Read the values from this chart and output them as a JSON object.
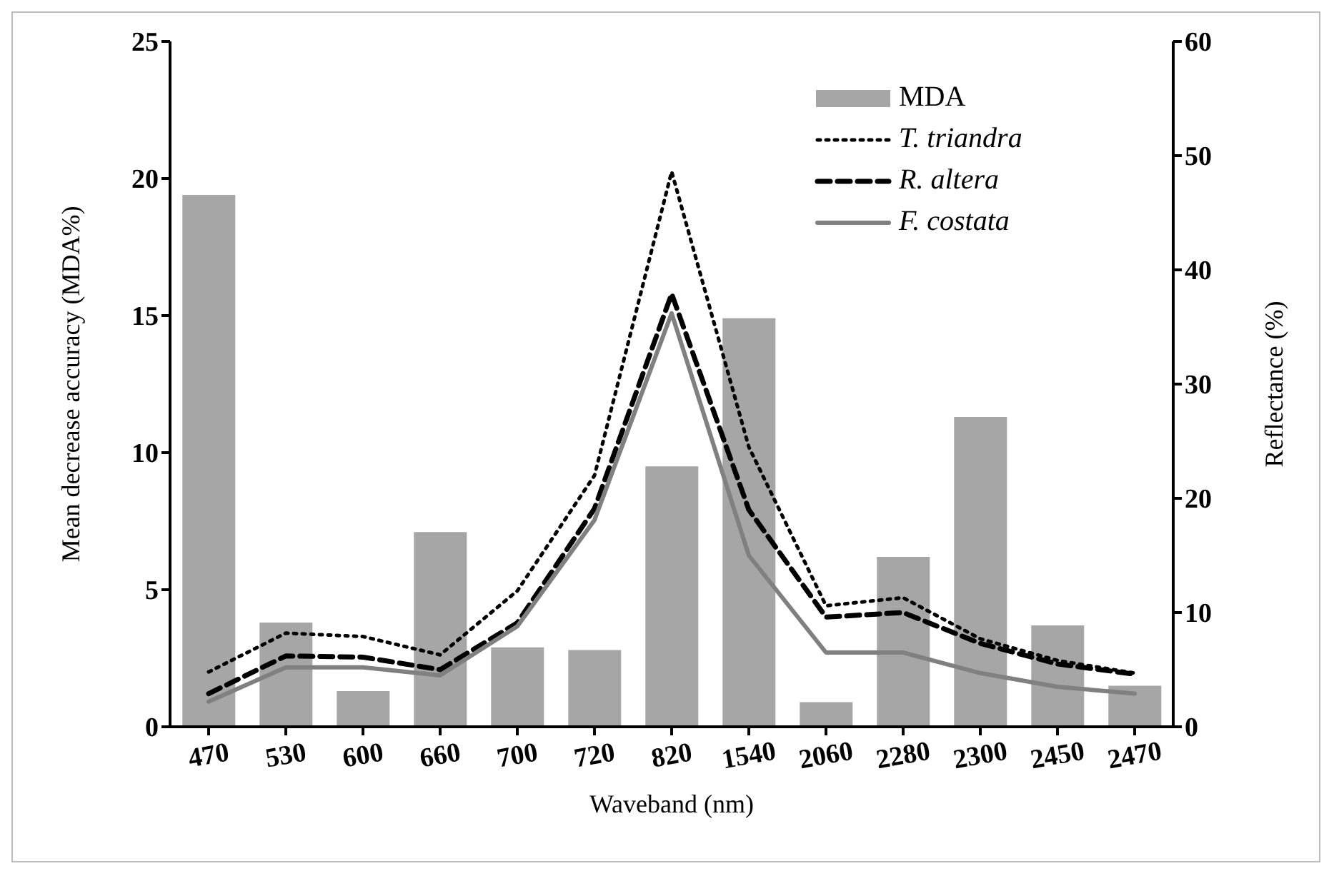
{
  "chart_data": {
    "type": "bar",
    "xlabel": "Waveband (nm)",
    "ylabel": "Mean decrease accuracy (MDA%)",
    "y2label": "Reflectance (%)",
    "categories": [
      "470",
      "530",
      "600",
      "660",
      "700",
      "720",
      "820",
      "1540",
      "2060",
      "2280",
      "2300",
      "2450",
      "2470"
    ],
    "ylim": [
      0,
      25
    ],
    "yticks": [
      0,
      5,
      10,
      15,
      20,
      25
    ],
    "y2lim": [
      0,
      60
    ],
    "y2ticks": [
      0,
      10,
      20,
      30,
      40,
      50,
      60
    ],
    "legend": "top right",
    "grid": false,
    "series": [
      {
        "name": "MDA",
        "color": "#a6a6a6",
        "values": [
          19.4,
          3.8,
          1.3,
          7.1,
          2.9,
          2.8,
          9.5,
          14.9,
          0.9,
          6.2,
          11.3,
          3.7,
          1.5
        ]
      },
      {
        "name": "T. triandra",
        "type": "line",
        "axis": "y2",
        "color": "#000000",
        "line_style": "dotted",
        "values": [
          4.8,
          8.2,
          7.9,
          6.3,
          11.9,
          22,
          48.6,
          24.5,
          10.6,
          11.3,
          7.7,
          5.8,
          4.7
        ]
      },
      {
        "name": "R. altera",
        "type": "line",
        "axis": "y2",
        "color": "#000000",
        "line_style": "dashed",
        "values": [
          2.9,
          6.2,
          6.1,
          5.0,
          9.1,
          19.1,
          37.9,
          19.0,
          9.6,
          10.0,
          7.3,
          5.5,
          4.6
        ]
      },
      {
        "name": "F. costata",
        "type": "line",
        "axis": "y2",
        "color": "#808080",
        "line_style": "solid",
        "values": [
          2.2,
          5.2,
          5.2,
          4.5,
          8.8,
          18.1,
          36.2,
          15.0,
          6.5,
          6.5,
          4.7,
          3.5,
          2.9
        ]
      }
    ]
  }
}
